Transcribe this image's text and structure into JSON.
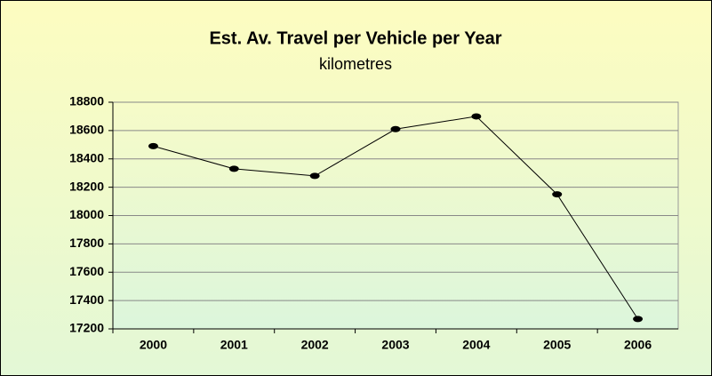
{
  "chart_data": {
    "type": "line",
    "title": "Est. Av. Travel per Vehicle per Year",
    "subtitle": "kilometres",
    "categories": [
      "2000",
      "2001",
      "2002",
      "2003",
      "2004",
      "2005",
      "2006"
    ],
    "values": [
      18490,
      18330,
      18280,
      18610,
      18700,
      18150,
      17270
    ],
    "color": "#000000",
    "ylim": [
      17200,
      18800
    ],
    "yticks": [
      17200,
      17400,
      17600,
      17800,
      18000,
      18200,
      18400,
      18600,
      18800
    ],
    "grid": true
  }
}
